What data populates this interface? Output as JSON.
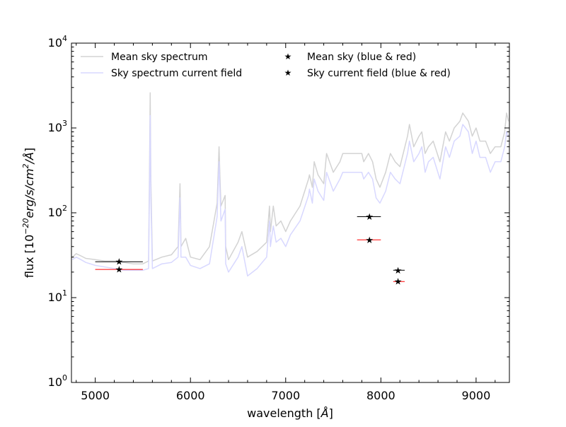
{
  "chart_data": {
    "type": "line",
    "title": "",
    "xlabel": "wavelength [Å]",
    "ylabel": "flux [10^-20 erg/s/cm^2/Å]",
    "xscale": "linear",
    "yscale": "log",
    "xlim": [
      4750,
      9350
    ],
    "ylim": [
      1,
      10000
    ],
    "grid": false,
    "legend_placement": "top",
    "x_ticks": [
      {
        "value": 5000,
        "label": "5000"
      },
      {
        "value": 6000,
        "label": "6000"
      },
      {
        "value": 7000,
        "label": "7000"
      },
      {
        "value": 8000,
        "label": "8000"
      },
      {
        "value": 9000,
        "label": "9000"
      }
    ],
    "y_ticks": [
      {
        "value": 1,
        "base": "10",
        "exp": "0"
      },
      {
        "value": 10,
        "base": "10",
        "exp": "1"
      },
      {
        "value": 100,
        "base": "10",
        "exp": "2"
      },
      {
        "value": 1000,
        "base": "10",
        "exp": "3"
      },
      {
        "value": 10000,
        "base": "10",
        "exp": "4"
      }
    ],
    "series": [
      {
        "name": "Mean sky spectrum",
        "kind": "line",
        "color": "#d3d3d3",
        "x": [
          4760,
          4800,
          4850,
          4900,
          5000,
          5100,
          5200,
          5300,
          5400,
          5500,
          5560,
          5570,
          5577,
          5584,
          5600,
          5700,
          5800,
          5870,
          5890,
          5895,
          5900,
          5950,
          6000,
          6100,
          6200,
          6280,
          6300,
          6310,
          6320,
          6364,
          6370,
          6400,
          6500,
          6540,
          6600,
          6700,
          6800,
          6830,
          6840,
          6870,
          6900,
          6950,
          7000,
          7050,
          7150,
          7240,
          7250,
          7280,
          7300,
          7340,
          7400,
          7430,
          7500,
          7570,
          7600,
          7650,
          7700,
          7750,
          7800,
          7820,
          7870,
          7913,
          7950,
          7990,
          8050,
          8100,
          8150,
          8200,
          8280,
          8300,
          8345,
          8400,
          8430,
          8465,
          8500,
          8550,
          8620,
          8680,
          8720,
          8770,
          8830,
          8860,
          8920,
          8960,
          9000,
          9040,
          9100,
          9150,
          9200,
          9260,
          9300,
          9320,
          9340
        ],
        "y": [
          30,
          33,
          31,
          29,
          28,
          27,
          27,
          26,
          25,
          25,
          27,
          300,
          2600,
          250,
          27,
          30,
          32,
          40,
          220,
          120,
          40,
          50,
          30,
          28,
          40,
          130,
          600,
          260,
          120,
          160,
          40,
          28,
          45,
          60,
          30,
          35,
          45,
          120,
          60,
          120,
          70,
          80,
          60,
          80,
          120,
          250,
          280,
          200,
          400,
          280,
          220,
          500,
          300,
          400,
          500,
          500,
          500,
          500,
          500,
          400,
          500,
          400,
          250,
          200,
          300,
          500,
          400,
          350,
          800,
          1100,
          600,
          800,
          900,
          500,
          600,
          700,
          400,
          900,
          700,
          1000,
          1200,
          1500,
          1200,
          800,
          1000,
          700,
          700,
          500,
          600,
          600,
          900,
          1500,
          1200
        ]
      },
      {
        "name": "Sky spectrum current field",
        "kind": "line",
        "color": "#d8d8ff",
        "x": [
          4760,
          4800,
          4850,
          4900,
          5000,
          5100,
          5200,
          5300,
          5400,
          5500,
          5560,
          5570,
          5577,
          5584,
          5600,
          5700,
          5800,
          5870,
          5890,
          5895,
          5900,
          5950,
          6000,
          6100,
          6200,
          6280,
          6300,
          6310,
          6320,
          6364,
          6370,
          6400,
          6500,
          6540,
          6600,
          6700,
          6800,
          6830,
          6840,
          6870,
          6900,
          6950,
          7000,
          7050,
          7150,
          7240,
          7250,
          7280,
          7300,
          7340,
          7400,
          7430,
          7500,
          7570,
          7600,
          7650,
          7700,
          7750,
          7800,
          7820,
          7870,
          7913,
          7950,
          7990,
          8050,
          8100,
          8150,
          8200,
          8280,
          8300,
          8345,
          8400,
          8430,
          8465,
          8500,
          8550,
          8620,
          8680,
          8720,
          8770,
          8830,
          8860,
          8920,
          8960,
          9000,
          9040,
          9100,
          9150,
          9200,
          9260,
          9300,
          9320,
          9340
        ],
        "y": [
          28,
          30,
          28,
          26,
          24,
          23,
          22,
          21,
          21,
          21,
          22,
          200,
          1400,
          150,
          22,
          25,
          26,
          30,
          150,
          80,
          30,
          30,
          24,
          22,
          25,
          90,
          400,
          180,
          80,
          110,
          25,
          20,
          30,
          40,
          18,
          22,
          30,
          80,
          40,
          70,
          45,
          50,
          40,
          55,
          80,
          160,
          190,
          130,
          250,
          180,
          140,
          300,
          180,
          250,
          300,
          300,
          300,
          300,
          300,
          250,
          300,
          250,
          150,
          130,
          180,
          300,
          250,
          220,
          500,
          700,
          400,
          500,
          600,
          300,
          400,
          450,
          250,
          600,
          450,
          700,
          800,
          1100,
          900,
          500,
          700,
          450,
          450,
          300,
          400,
          400,
          600,
          900,
          800
        ]
      }
    ],
    "markers": [
      {
        "name": "Mean sky (blue & red)",
        "color": "#000000",
        "points": [
          {
            "x": 5250,
            "y": 26.5,
            "xerr": [
              5000,
              5500
            ]
          },
          {
            "x": 7880,
            "y": 90,
            "xerr": [
              7750,
              8000
            ]
          },
          {
            "x": 8180,
            "y": 21,
            "xerr": [
              8130,
              8250
            ]
          }
        ]
      },
      {
        "name": "Sky current field (blue & red)",
        "color": "#ff0000",
        "points": [
          {
            "x": 5250,
            "y": 21.5,
            "xerr": [
              5000,
              5500
            ]
          },
          {
            "x": 7880,
            "y": 48,
            "xerr": [
              7750,
              8000
            ]
          },
          {
            "x": 8180,
            "y": 15.5,
            "xerr": [
              8130,
              8250
            ]
          }
        ]
      }
    ]
  }
}
